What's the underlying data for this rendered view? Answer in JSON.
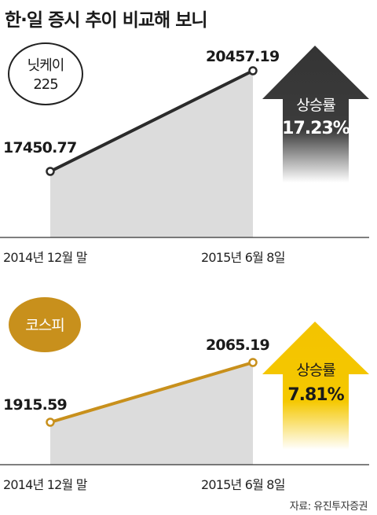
{
  "title": "한·일 증시 추이 비교해 보니",
  "source": "자료: 유진투자증권",
  "colors": {
    "nikkei_line": "#2b2b2b",
    "kospi_line": "#c8901c",
    "area_fill": "#dcdcdc",
    "nikkei_badge_bg": "#ffffff",
    "kospi_badge_bg": "#c8901c",
    "dark_arrow": "#3a3a3a",
    "yellow_arrow": "#f2c200"
  },
  "chart_data": [
    {
      "type": "line",
      "badge": "닛케이\n225",
      "x": [
        "2014년 12월 말",
        "2015년 6월 8일"
      ],
      "series": [
        {
          "name": "",
          "values": [
            17450.77,
            20457.19
          ]
        }
      ],
      "value_labels": [
        "17450.77",
        "20457.19"
      ],
      "change": {
        "label": "상승률",
        "value": "17.23%",
        "direction": "up"
      }
    },
    {
      "type": "line",
      "badge": "코스피",
      "x": [
        "2014년 12월 말",
        "2015년 6월 8일"
      ],
      "series": [
        {
          "name": "",
          "values": [
            1915.59,
            2065.19
          ]
        }
      ],
      "value_labels": [
        "1915.59",
        "2065.19"
      ],
      "change": {
        "label": "상승률",
        "value": "7.81%",
        "direction": "up"
      }
    }
  ]
}
